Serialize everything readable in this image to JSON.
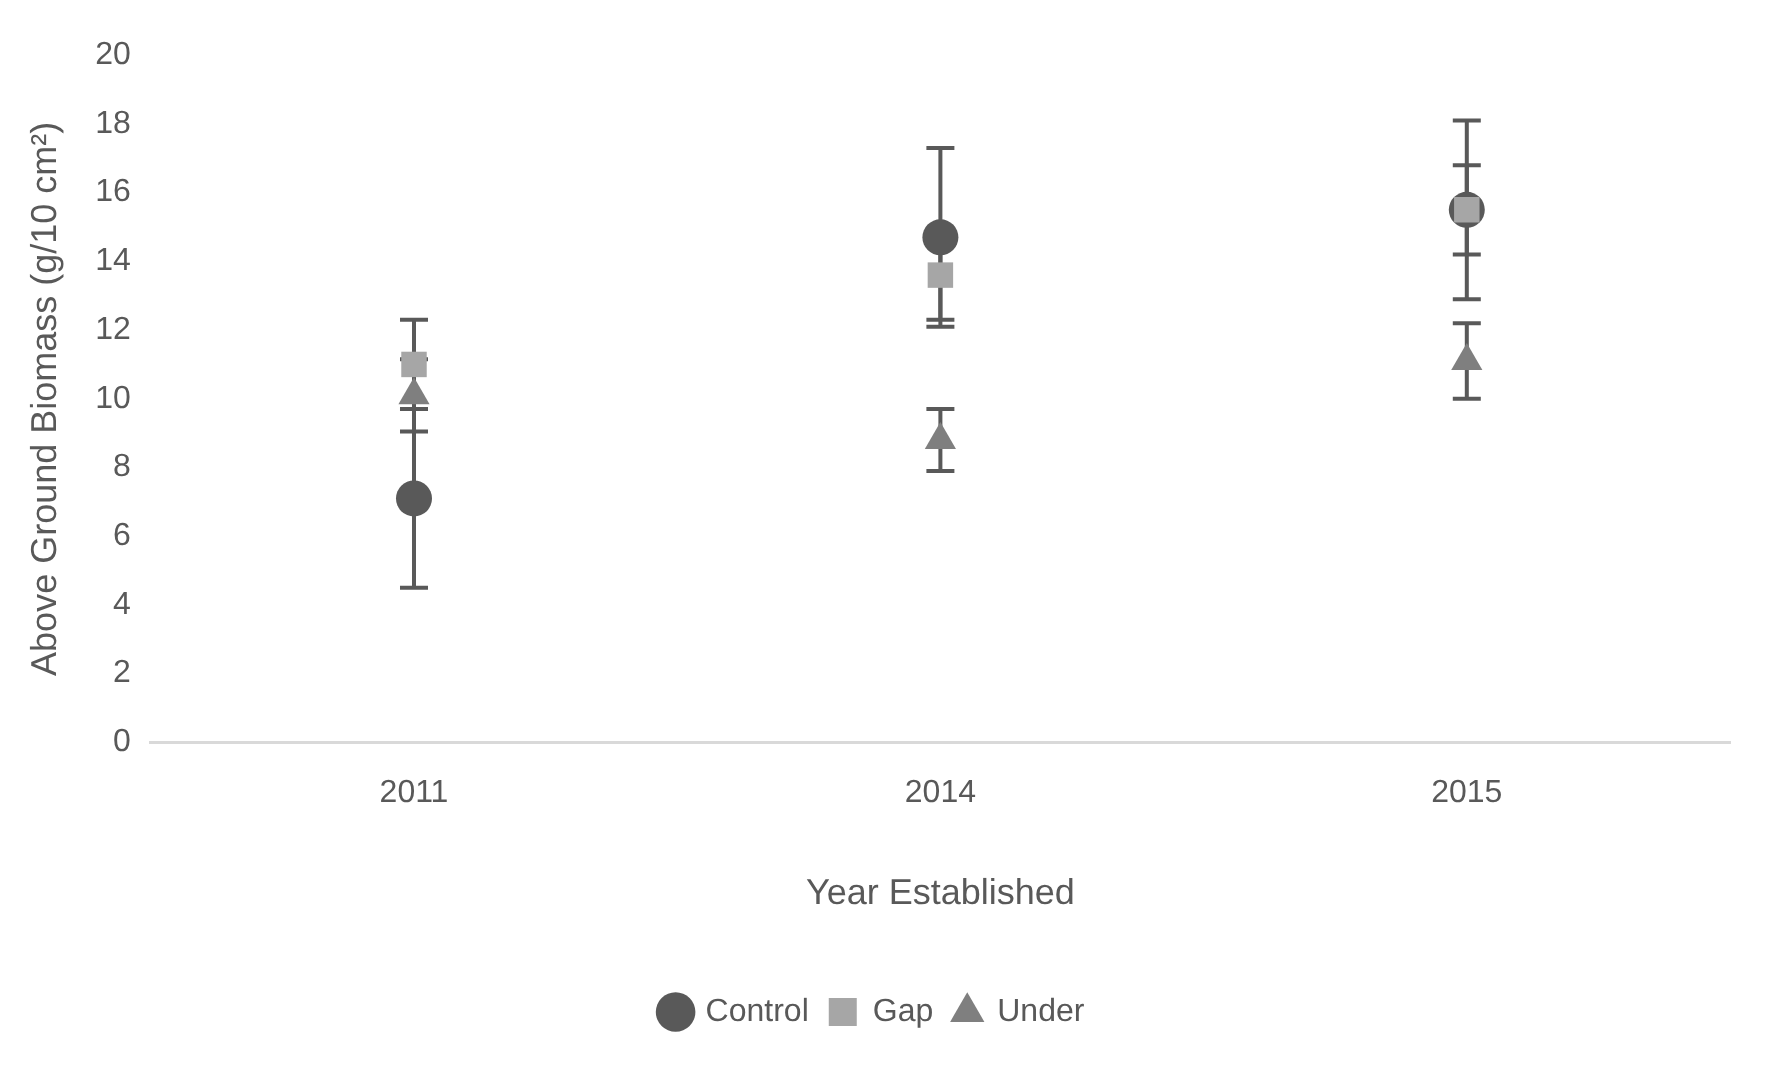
{
  "chart_data": {
    "type": "scatter",
    "xlabel": "Year Established",
    "ylabel": "Above Ground Biomass (g/10 cm²)",
    "categories": [
      "2011",
      "2014",
      "2015"
    ],
    "ylim": [
      0,
      20
    ],
    "yticks": [
      0,
      2,
      4,
      6,
      8,
      10,
      12,
      14,
      16,
      18,
      20
    ],
    "grid": false,
    "legend": "bottom",
    "series": [
      {
        "name": "Control",
        "color": "#595959",
        "marker": "circle",
        "values": [
          7.1,
          14.7,
          15.5
        ],
        "errors": [
          2.6,
          2.6,
          2.6
        ]
      },
      {
        "name": "Gap",
        "color": "#a6a6a6",
        "marker": "square",
        "values": [
          11.0,
          13.6,
          15.5
        ],
        "errors": [
          1.3,
          1.3,
          1.3
        ]
      },
      {
        "name": "Under",
        "color": "#7f7f7f",
        "marker": "triangle",
        "values": [
          10.1,
          8.8,
          11.1
        ],
        "errors": [
          1.05,
          0.9,
          1.1
        ]
      }
    ]
  }
}
